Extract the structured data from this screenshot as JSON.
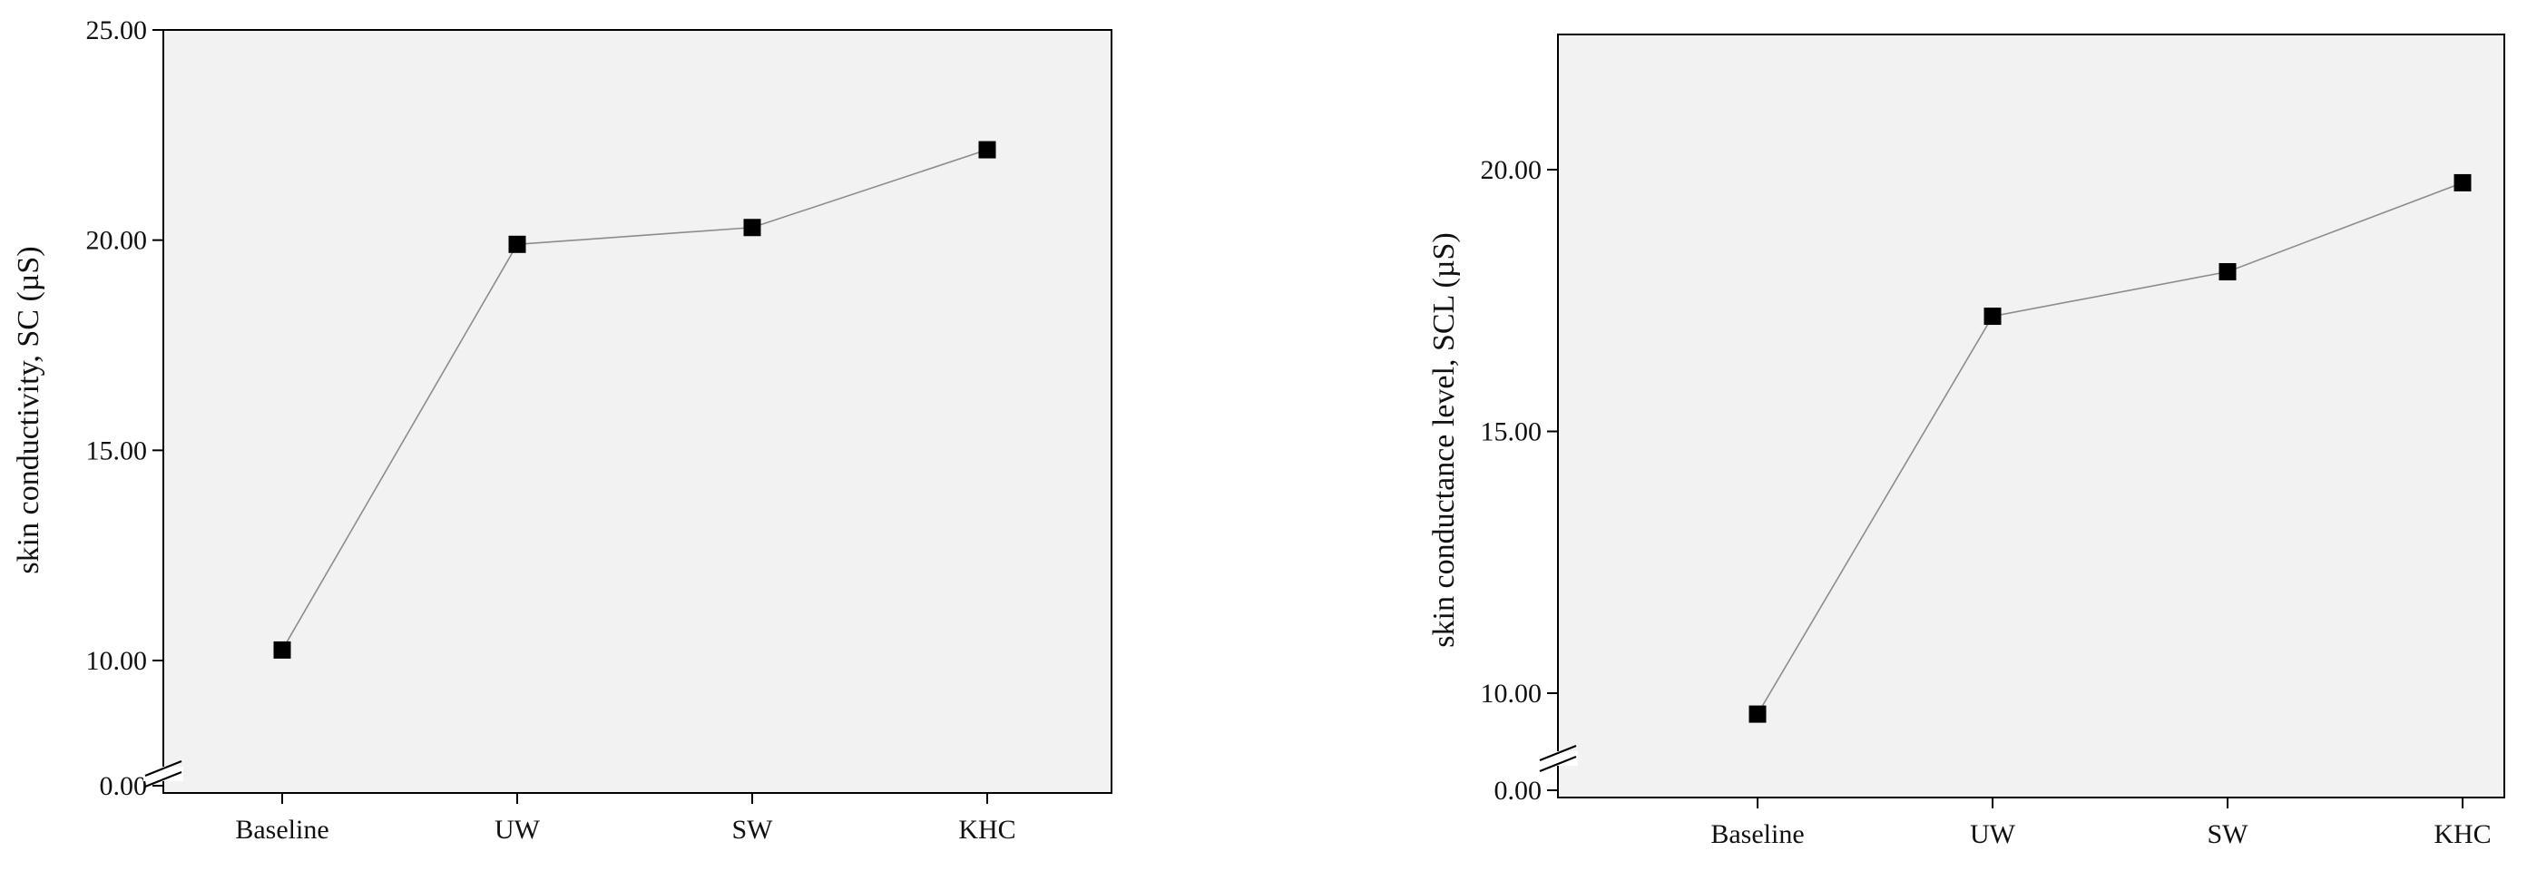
{
  "chart_data": [
    {
      "type": "line",
      "title": "",
      "xlabel": "",
      "ylabel": "skin conductivity, SC (µS)",
      "categories": [
        "Baseline",
        "UW",
        "SW",
        "KHC"
      ],
      "series": [
        {
          "values": [
            10.25,
            19.9,
            20.3,
            22.15
          ]
        }
      ],
      "yticks": [
        0,
        10,
        15,
        20,
        25
      ],
      "ytick_labels": [
        "0.00",
        "10.00",
        "15.00",
        "20.00",
        "25.00"
      ],
      "ylim": [
        8,
        25
      ],
      "axis_break": true,
      "grid": false,
      "colors": {
        "line": "#8c8c8c",
        "marker": "#000000",
        "background": "#f2f2f2"
      }
    },
    {
      "type": "line",
      "title": "",
      "xlabel": "",
      "ylabel": "skin conductance level, SCL (µS)",
      "categories": [
        "Baseline",
        "UW",
        "SW",
        "KHC"
      ],
      "series": [
        {
          "values": [
            9.6,
            17.2,
            18.05,
            19.75
          ]
        }
      ],
      "yticks": [
        0,
        10,
        15,
        20
      ],
      "ytick_labels": [
        "0.00",
        "10.00",
        "15.00",
        "20.00"
      ],
      "ylim": [
        8.5,
        22.5
      ],
      "axis_break": true,
      "grid": false,
      "colors": {
        "line": "#8c8c8c",
        "marker": "#000000",
        "background": "#f2f2f2"
      }
    }
  ]
}
